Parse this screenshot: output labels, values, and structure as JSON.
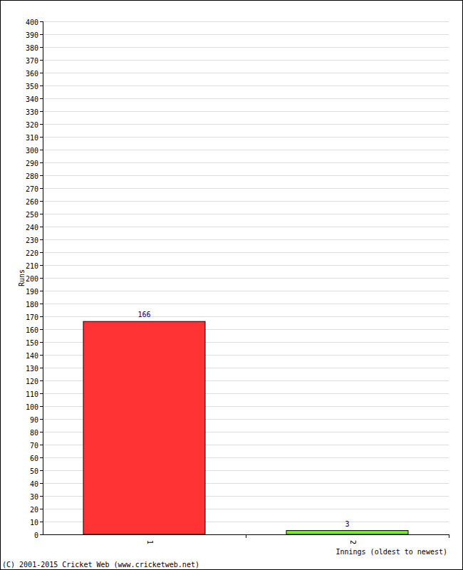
{
  "chart_data": {
    "type": "bar",
    "x_label": "Innings (oldest to newest)",
    "y_label": "Runs",
    "annotations": [
      "(C) 2001-2015 Cricket Web (www.cricketweb.net)"
    ],
    "categories": [
      "1",
      "2"
    ],
    "values": [
      166,
      3
    ],
    "colors": [
      "#ff3333",
      "#77ee22"
    ],
    "ylim": [
      0,
      400
    ],
    "yticks": [
      0,
      10,
      20,
      30,
      40,
      50,
      60,
      70,
      80,
      90,
      100,
      110,
      120,
      130,
      140,
      150,
      160,
      170,
      180,
      190,
      200,
      210,
      220,
      230,
      240,
      250,
      260,
      270,
      280,
      290,
      300,
      310,
      320,
      330,
      340,
      350,
      360,
      370,
      380,
      390,
      400
    ],
    "grid": true,
    "data_labels": true
  }
}
